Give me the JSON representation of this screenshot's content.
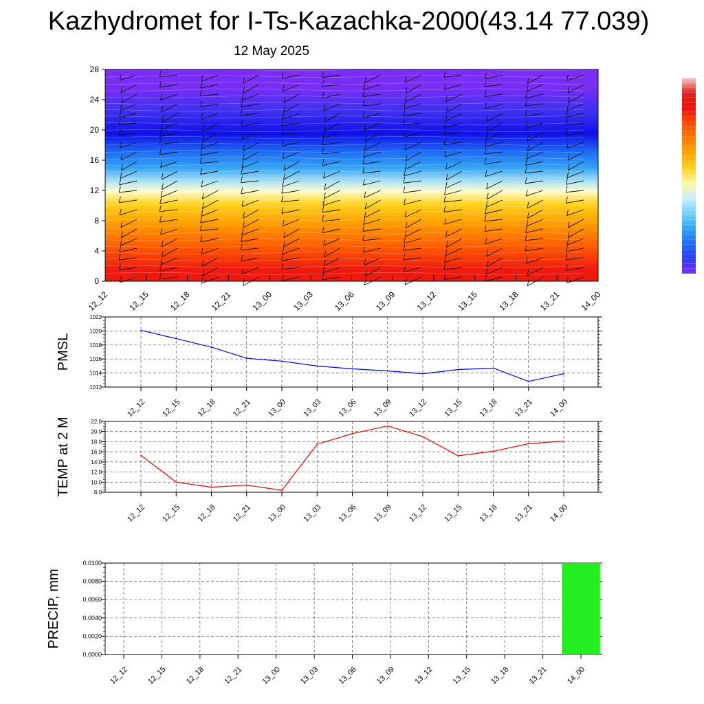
{
  "title": "Kazhydromet for I-Ts-Kazachka-2000(43.14 77.039)",
  "subtitle": "12 May 2025",
  "colors": {
    "pmsl_line": "#0000ee",
    "temp_line": "#ee0000",
    "precip_bar": "#22ee22",
    "grid": "#555555",
    "colorbar": [
      "#7a2ef5",
      "#2b3bf5",
      "#1f6ef5",
      "#33a4f5",
      "#74d0f7",
      "#c9eefa",
      "#fff6a0",
      "#ffd21c",
      "#ffa500",
      "#ff7a00",
      "#ff4a00",
      "#ee1111",
      "#e02020",
      "#f4d0d0"
    ]
  },
  "chart_data": [
    {
      "type": "heatmap",
      "name": "cross-section",
      "categories": [
        "12_12",
        "12_15",
        "12_18",
        "12_21",
        "13_00",
        "13_03",
        "13_06",
        "13_09",
        "13_12",
        "13_15",
        "13_18",
        "13_21",
        "14_00"
      ],
      "ylim": [
        0,
        28
      ],
      "yticks": [
        "0",
        "4",
        "8",
        "12",
        "16",
        "20",
        "24",
        "28"
      ],
      "bands": [
        {
          "from": 0,
          "to": 3,
          "color": "#ee1a10"
        },
        {
          "from": 3,
          "to": 6,
          "color": "#ff5a00"
        },
        {
          "from": 6,
          "to": 9,
          "color": "#ff9a00"
        },
        {
          "from": 9,
          "to": 11.3,
          "color": "#ffd21c"
        },
        {
          "from": 11.3,
          "to": 12.5,
          "color": "#fffbd0"
        },
        {
          "from": 12.5,
          "to": 14,
          "color": "#a8e0f5"
        },
        {
          "from": 14,
          "to": 16,
          "color": "#33a4f5"
        },
        {
          "from": 16,
          "to": 18,
          "color": "#1f6ef5"
        },
        {
          "from": 18,
          "to": 21,
          "color": "#1010e8"
        },
        {
          "from": 21,
          "to": 23.5,
          "color": "#3a30f0"
        },
        {
          "from": 23.5,
          "to": 28,
          "color": "#7a2ef5"
        }
      ],
      "wind_barbs": "shown"
    },
    {
      "type": "line",
      "ylabel": "PMSL",
      "categories": [
        "12_12",
        "12_15",
        "12_18",
        "12_21",
        "13_00",
        "13_03",
        "13_06",
        "13_09",
        "13_12",
        "13_15",
        "13_18",
        "13_21",
        "14_00"
      ],
      "values": [
        1020.1,
        1018.9,
        1017.7,
        1016.1,
        1015.7,
        1015.0,
        1014.6,
        1014.3,
        1013.9,
        1014.5,
        1014.7,
        1012.8,
        1013.9
      ],
      "ylim": [
        1012,
        1022
      ],
      "yticks": [
        "1012",
        "1014",
        "1016",
        "1018",
        "1020",
        "1022"
      ],
      "grid": true
    },
    {
      "type": "line",
      "ylabel": "TEMP at 2 M",
      "categories": [
        "12_12",
        "12_15",
        "12_18",
        "12_21",
        "13_00",
        "13_03",
        "13_06",
        "13_09",
        "13_12",
        "13_15",
        "13_18",
        "13_21",
        "14_00"
      ],
      "values": [
        15.3,
        10.0,
        9.0,
        9.4,
        8.4,
        17.5,
        19.6,
        21.1,
        19.0,
        15.2,
        16.1,
        17.6,
        18.1
      ],
      "ylim": [
        8,
        22
      ],
      "yticks": [
        "8.0",
        "10.0",
        "12.0",
        "14.0",
        "16.0",
        "18.0",
        "20.0",
        "22.0"
      ],
      "grid": true
    },
    {
      "type": "bar",
      "ylabel": "PRECIP, mm",
      "categories": [
        "12_12",
        "12_15",
        "12_18",
        "12_21",
        "13_00",
        "13_03",
        "13_06",
        "13_09",
        "13_12",
        "13_15",
        "13_18",
        "13_21",
        "14_00"
      ],
      "values": [
        0,
        0,
        0,
        0,
        0,
        0,
        0,
        0,
        0,
        0,
        0,
        0,
        0.01
      ],
      "ylim": [
        0,
        0.01
      ],
      "yticks": [
        "0.0000",
        "0.0020",
        "0.0040",
        "0.0060",
        "0.0080",
        "0.0100"
      ],
      "grid": true
    }
  ]
}
